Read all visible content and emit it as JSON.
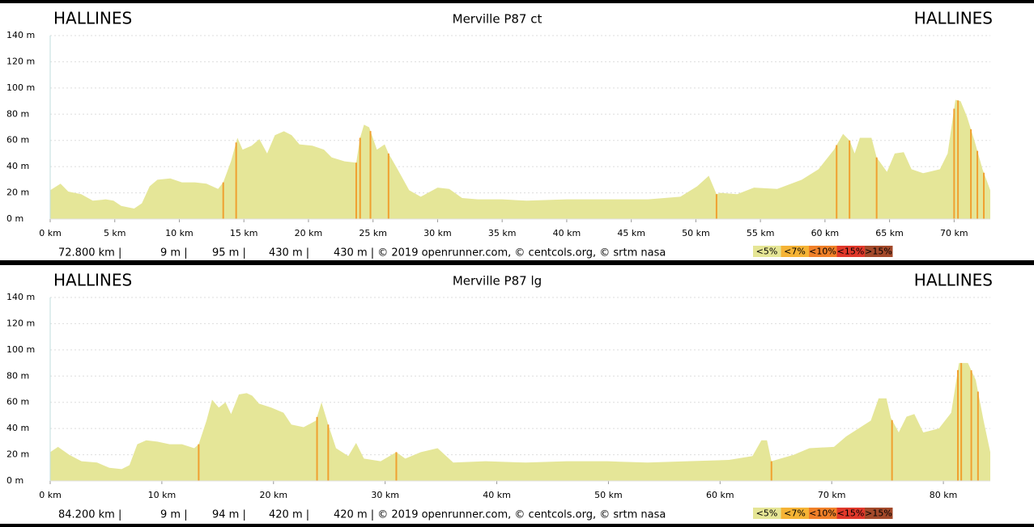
{
  "chart_data": [
    {
      "type": "area",
      "title": "Merville P87 ct",
      "start_label": "HALLINES",
      "end_label": "HALLINES",
      "color": "#e5e698",
      "steep_color": "#f0a030",
      "x": [
        0,
        0.8,
        1.4,
        2.4,
        3.3,
        4.3,
        4.9,
        5.5,
        6.5,
        7.1,
        7.7,
        8.3,
        9.3,
        10.2,
        11.2,
        12.1,
        13.0,
        13.4,
        14.0,
        14.5,
        14.9,
        15.6,
        16.2,
        16.8,
        17.4,
        18.1,
        18.7,
        19.3,
        20.3,
        21.2,
        21.8,
        22.8,
        23.7,
        24.0,
        24.3,
        24.7,
        25.3,
        25.9,
        26.2,
        26.9,
        27.8,
        28.7,
        30.0,
        30.9,
        31.9,
        33.1,
        35.0,
        36.9,
        40.0,
        43.2,
        46.3,
        48.8,
        50.1,
        51.0,
        51.6,
        51.9,
        53.2,
        54.5,
        56.3,
        58.2,
        59.5,
        60.7,
        61.4,
        61.9,
        62.3,
        62.7,
        63.6,
        64.0,
        64.8,
        65.4,
        66.1,
        66.7,
        67.6,
        68.9,
        69.5,
        70.1,
        70.5,
        71.0,
        71.6,
        72.2,
        72.8
      ],
      "values": [
        22,
        27,
        21,
        19,
        14,
        15,
        14,
        10,
        8,
        12,
        25,
        30,
        31,
        28,
        28,
        27,
        23,
        28,
        44,
        62,
        53,
        56,
        61,
        50,
        64,
        67,
        64,
        57,
        56,
        53,
        47,
        44,
        43,
        62,
        72,
        70,
        53,
        57,
        50,
        38,
        22,
        17,
        24,
        23,
        16,
        15,
        15,
        14,
        15,
        15,
        15,
        17,
        25,
        33,
        19,
        20,
        19,
        24,
        23,
        30,
        38,
        53,
        65,
        60,
        50,
        62,
        62,
        47,
        36,
        50,
        51,
        38,
        35,
        38,
        50,
        91,
        90,
        78,
        59,
        38,
        22
      ],
      "steep_x": [
        13.4,
        14.4,
        23.7,
        24.0,
        24.8,
        26.2,
        51.6,
        60.9,
        61.9,
        64.0,
        70.0,
        70.3,
        71.3,
        71.8,
        72.3
      ],
      "xlim": [
        0,
        72.8
      ],
      "ylim": [
        0,
        140
      ],
      "xticks": [
        {
          "value": 0,
          "label": "0 km"
        },
        {
          "value": 5,
          "label": "5 km"
        },
        {
          "value": 10,
          "label": "10 km"
        },
        {
          "value": 15,
          "label": "15 km"
        },
        {
          "value": 20,
          "label": "20 km"
        },
        {
          "value": 25,
          "label": "25 km"
        },
        {
          "value": 30,
          "label": "30 km"
        },
        {
          "value": 35,
          "label": "35 km"
        },
        {
          "value": 40,
          "label": "40 km"
        },
        {
          "value": 45,
          "label": "45 km"
        },
        {
          "value": 50,
          "label": "50 km"
        },
        {
          "value": 55,
          "label": "55 km"
        },
        {
          "value": 60,
          "label": "60 km"
        },
        {
          "value": 65,
          "label": "65 km"
        },
        {
          "value": 70,
          "label": "70 km"
        }
      ],
      "yticks": [
        {
          "value": 0,
          "label": "0 m"
        },
        {
          "value": 20,
          "label": "20 m"
        },
        {
          "value": 40,
          "label": "40 m"
        },
        {
          "value": 60,
          "label": "60 m"
        },
        {
          "value": 80,
          "label": "80 m"
        },
        {
          "value": 100,
          "label": "100 m"
        },
        {
          "value": 120,
          "label": "120 m"
        },
        {
          "value": 140,
          "label": "140 m"
        }
      ],
      "grid": true,
      "footer": [
        "72.800 km |",
        "9 m |",
        "95 m |",
        "430 m |",
        "430 m | © 2019 openrunner.com, © centcols.org, © srtm nasa"
      ],
      "legend": [
        {
          "label": "<5%",
          "color": "#e5e595"
        },
        {
          "label": "<7%",
          "color": "#f5b335"
        },
        {
          "label": "<10%",
          "color": "#f08028"
        },
        {
          "label": "<15%",
          "color": "#e0382a"
        },
        {
          "label": ">15%",
          "color": "#a3492a"
        }
      ]
    },
    {
      "type": "area",
      "title": "Merville P87 lg",
      "start_label": "HALLINES",
      "end_label": "HALLINES",
      "color": "#e5e698",
      "steep_color": "#f0a030",
      "x": [
        0,
        0.7,
        1.7,
        2.8,
        4.2,
        5.3,
        6.4,
        7.1,
        7.8,
        8.6,
        9.6,
        10.7,
        11.8,
        12.9,
        13.3,
        14.0,
        14.5,
        15.1,
        15.7,
        16.2,
        16.9,
        17.6,
        18.1,
        18.7,
        19.8,
        20.9,
        21.6,
        22.7,
        23.8,
        24.3,
        24.9,
        25.6,
        26.7,
        27.4,
        28.1,
        29.6,
        31.0,
        31.8,
        33.2,
        34.7,
        36.1,
        39.0,
        42.6,
        46.3,
        49.9,
        53.5,
        57.1,
        60.8,
        62.9,
        63.7,
        64.2,
        64.6,
        66.6,
        68.0,
        70.2,
        71.3,
        72.4,
        73.5,
        74.2,
        74.9,
        75.3,
        76.0,
        76.7,
        77.4,
        78.2,
        79.6,
        80.7,
        81.4,
        82.2,
        82.9,
        83.6,
        84.2
      ],
      "values": [
        22,
        26,
        20,
        15,
        14,
        10,
        9,
        12,
        28,
        31,
        30,
        28,
        28,
        25,
        28,
        46,
        62,
        56,
        60,
        51,
        66,
        67,
        65,
        59,
        56,
        52,
        43,
        41,
        46,
        60,
        43,
        25,
        19,
        29,
        17,
        15,
        22,
        17,
        22,
        25,
        14,
        15,
        14,
        15,
        15,
        14,
        15,
        16,
        19,
        31,
        31,
        15,
        20,
        25,
        26,
        34,
        40,
        46,
        63,
        63,
        48,
        37,
        49,
        51,
        37,
        40,
        52,
        90,
        90,
        77,
        46,
        22
      ],
      "steep_x": [
        13.3,
        23.9,
        24.9,
        31.0,
        64.6,
        75.4,
        81.3,
        81.6,
        82.5,
        83.1
      ],
      "xlim": [
        0,
        84.2
      ],
      "ylim": [
        0,
        140
      ],
      "xticks": [
        {
          "value": 0,
          "label": "0 km"
        },
        {
          "value": 10,
          "label": "10 km"
        },
        {
          "value": 20,
          "label": "20 km"
        },
        {
          "value": 30,
          "label": "30 km"
        },
        {
          "value": 40,
          "label": "40 km"
        },
        {
          "value": 50,
          "label": "50 km"
        },
        {
          "value": 60,
          "label": "60 km"
        },
        {
          "value": 70,
          "label": "70 km"
        },
        {
          "value": 80,
          "label": "80 km"
        }
      ],
      "yticks": [
        {
          "value": 0,
          "label": "0 m"
        },
        {
          "value": 20,
          "label": "20 m"
        },
        {
          "value": 40,
          "label": "40 m"
        },
        {
          "value": 60,
          "label": "60 m"
        },
        {
          "value": 80,
          "label": "80 m"
        },
        {
          "value": 100,
          "label": "100 m"
        },
        {
          "value": 120,
          "label": "120 m"
        },
        {
          "value": 140,
          "label": "140 m"
        }
      ],
      "grid": true,
      "footer": [
        "84.200 km |",
        "9 m |",
        "94 m |",
        "420 m |",
        "420 m | © 2019 openrunner.com, © centcols.org, © srtm nasa"
      ],
      "legend": [
        {
          "label": "<5%",
          "color": "#e5e595"
        },
        {
          "label": "<7%",
          "color": "#f5b335"
        },
        {
          "label": "<10%",
          "color": "#f08028"
        },
        {
          "label": "<15%",
          "color": "#e0382a"
        },
        {
          "label": ">15%",
          "color": "#a3492a"
        }
      ]
    }
  ]
}
